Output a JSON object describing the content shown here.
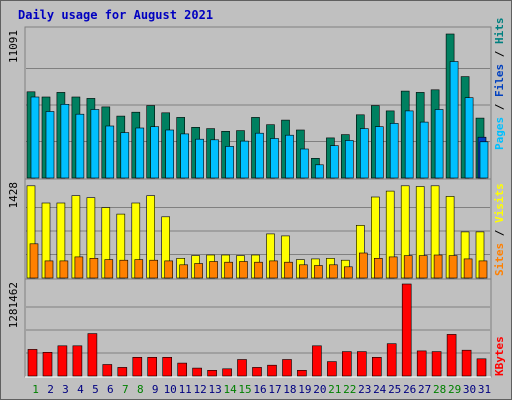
{
  "chart_data": {
    "type": "bar",
    "title": "Daily usage for August 2021",
    "categories": [
      "1",
      "2",
      "3",
      "4",
      "5",
      "6",
      "7",
      "8",
      "9",
      "10",
      "11",
      "12",
      "13",
      "14",
      "15",
      "16",
      "17",
      "18",
      "19",
      "20",
      "21",
      "22",
      "23",
      "24",
      "25",
      "26",
      "27",
      "28",
      "29",
      "30",
      "31"
    ],
    "weekend_categories": [
      "1",
      "7",
      "8",
      "14",
      "15",
      "21",
      "22",
      "28",
      "29"
    ],
    "panels": [
      {
        "max_label": "11091",
        "ymax": 11091,
        "side_parts": [
          "Pages",
          "Files",
          "Hits"
        ],
        "side_colors": [
          "#00c0ff",
          "#0040c0",
          "#008080"
        ],
        "series": [
          {
            "name": "Hits",
            "color": "#008060",
            "values": [
              6550,
              6150,
              6500,
              6150,
              6050,
              5400,
              4700,
              5000,
              5500,
              4950,
              4600,
              3850,
              3750,
              3550,
              3600,
              4600,
              4050,
              4400,
              3650,
              1500,
              3050,
              3300,
              4800,
              5500,
              5100,
              6600,
              6500,
              6700,
              10940,
              7700,
              4550
            ]
          },
          {
            "name": "Files",
            "color": "#0040c0",
            "values": [
              0,
              0,
              0,
              0,
              0,
              0,
              0,
              0,
              0,
              0,
              0,
              0,
              0,
              0,
              0,
              0,
              0,
              0,
              0,
              0,
              0,
              0,
              0,
              0,
              0,
              0,
              0,
              0,
              0,
              0,
              3100
            ]
          },
          {
            "name": "Pages",
            "color": "#00c0ff",
            "values": [
              6150,
              5050,
              5600,
              4850,
              5200,
              3950,
              3450,
              3800,
              3900,
              3650,
              3350,
              2950,
              2900,
              2400,
              2800,
              3400,
              3000,
              3250,
              2200,
              1000,
              2450,
              2850,
              3750,
              3900,
              4150,
              5100,
              4250,
              5200,
              8850,
              6100,
              2750
            ]
          }
        ]
      },
      {
        "max_label": "1428",
        "ymax": 1428,
        "side_parts": [
          "Sites",
          "Visits"
        ],
        "side_colors": [
          "#ff8000",
          "#ffff00"
        ],
        "series": [
          {
            "name": "Visits",
            "color": "#ffff00",
            "values": [
              1400,
              1140,
              1140,
              1250,
              1220,
              1070,
              970,
              1140,
              1250,
              930,
              300,
              340,
              350,
              350,
              340,
              350,
              670,
              640,
              280,
              290,
              300,
              270,
              800,
              1230,
              1320,
              1400,
              1390,
              1400,
              1240,
              700,
              700
            ]
          },
          {
            "name": "Sites",
            "color": "#ff8000",
            "values": [
              520,
              260,
              260,
              320,
              300,
              280,
              270,
              280,
              270,
              260,
              200,
              220,
              250,
              240,
              250,
              240,
              260,
              240,
              200,
              190,
              200,
              170,
              380,
              300,
              320,
              340,
              340,
              350,
              340,
              290,
              260
            ]
          }
        ]
      },
      {
        "max_label": "1281462",
        "ymax": 1281462,
        "side_parts": [
          "KBytes"
        ],
        "side_colors": [
          "#ff0000"
        ],
        "series": [
          {
            "name": "KBytes",
            "color": "#ff0000",
            "values": [
              370000,
              330000,
              420000,
              420000,
              590000,
              160000,
              120000,
              260000,
              260000,
              260000,
              180000,
              110000,
              80000,
              100000,
              230000,
              120000,
              150000,
              230000,
              80000,
              420000,
              200000,
              340000,
              340000,
              260000,
              450000,
              1281462,
              350000,
              340000,
              580000,
              360000,
              240000
            ]
          }
        ]
      }
    ]
  }
}
